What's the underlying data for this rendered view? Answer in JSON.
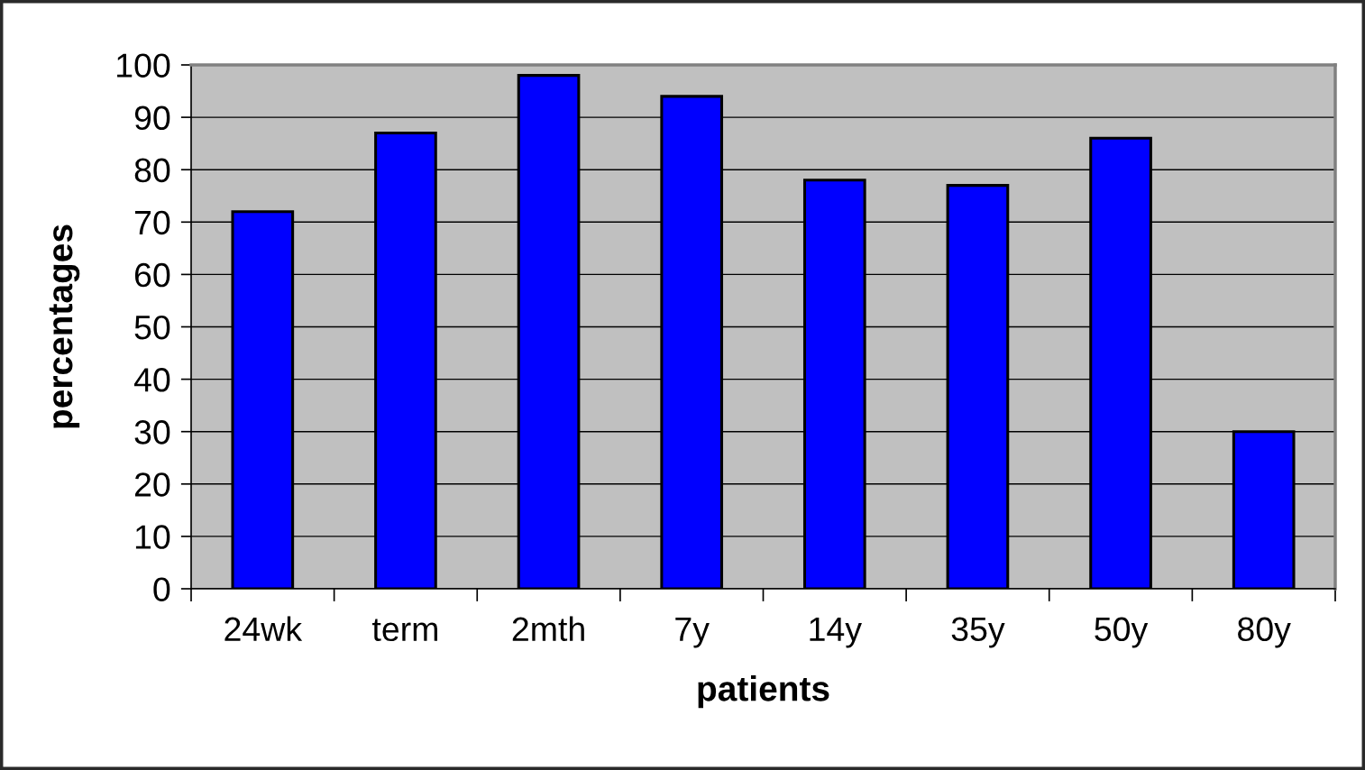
{
  "chart_data": {
    "type": "bar",
    "xlabel": "patients",
    "ylabel": "percentages",
    "categories": [
      "24wk",
      "term",
      "2mth",
      "7y",
      "14y",
      "35y",
      "50y",
      "80y"
    ],
    "values": [
      72,
      87,
      98,
      94,
      78,
      77,
      86,
      30
    ],
    "color": "#0000ff",
    "ylim": [
      0,
      100
    ],
    "yticks": [
      0,
      10,
      20,
      30,
      40,
      50,
      60,
      70,
      80,
      90,
      100
    ],
    "grid": "y"
  }
}
